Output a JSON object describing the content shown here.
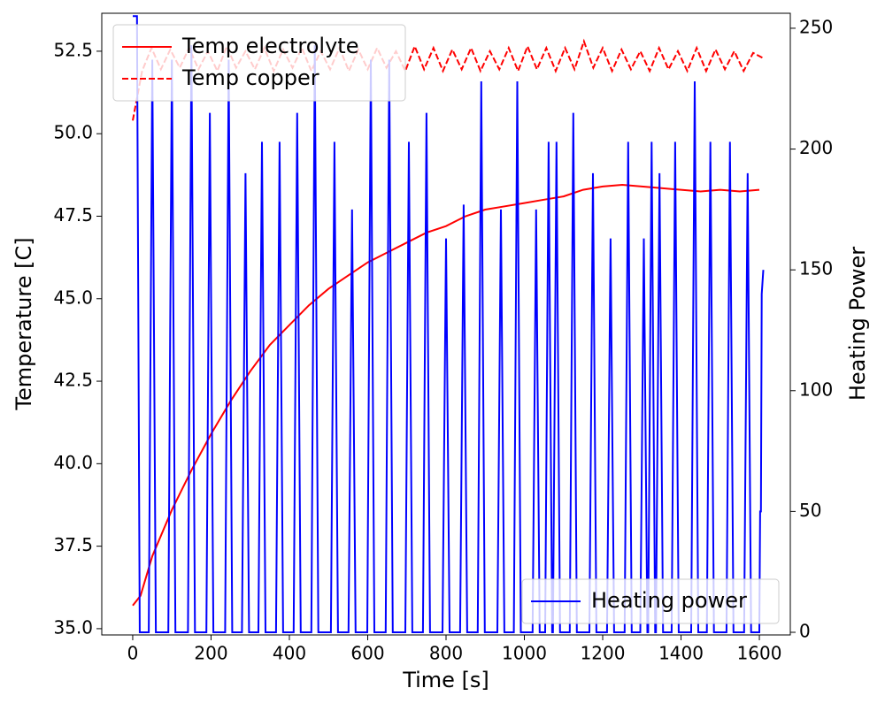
{
  "chart_data": {
    "type": "line",
    "xlabel": "Time [s]",
    "ylabel": "Temperature [C]",
    "y2label": "Heating Power",
    "xlim": [
      -79,
      1679
    ],
    "xticks": [
      0,
      200,
      400,
      600,
      800,
      1000,
      1200,
      1400,
      1600
    ],
    "ylim": [
      34.81,
      53.65
    ],
    "yticks": [
      {
        "value": 35,
        "label": "35.0"
      },
      37.5,
      {
        "value": 40,
        "label": "40.0"
      },
      42.5,
      {
        "value": 45,
        "label": "45.0"
      },
      47.5,
      {
        "value": 50,
        "label": "50.0"
      },
      52.5
    ],
    "y2lim": [
      -1.1,
      256.2
    ],
    "y2ticks": [
      0,
      50,
      100,
      150,
      200,
      250
    ],
    "legend": "upper left",
    "legend2": "lower right",
    "series": [
      {
        "name": "Temp electrolyte",
        "color": "#ff0000",
        "dash": false,
        "axis": "y",
        "x": [
          0,
          20,
          50,
          100,
          150,
          200,
          250,
          300,
          350,
          400,
          450,
          500,
          550,
          600,
          650,
          700,
          750,
          800,
          850,
          900,
          950,
          1000,
          1050,
          1100,
          1150,
          1200,
          1250,
          1300,
          1350,
          1400,
          1450,
          1500,
          1550,
          1600
        ],
        "values": [
          35.7,
          36.0,
          37.2,
          38.6,
          39.8,
          40.9,
          41.9,
          42.8,
          43.6,
          44.2,
          44.8,
          45.3,
          45.7,
          46.1,
          46.4,
          46.7,
          47.0,
          47.2,
          47.5,
          47.7,
          47.8,
          47.9,
          48.0,
          48.1,
          48.3,
          48.4,
          48.45,
          48.4,
          48.35,
          48.3,
          48.25,
          48.3,
          48.25,
          48.3
        ]
      },
      {
        "name": "Temp copper",
        "color": "#ff0000",
        "dash": true,
        "axis": "y",
        "x": [
          0,
          24,
          48,
          72,
          96,
          120,
          144,
          168,
          192,
          216,
          240,
          264,
          288,
          312,
          336,
          360,
          384,
          408,
          432,
          456,
          480,
          504,
          528,
          552,
          576,
          600,
          624,
          648,
          672,
          696,
          720,
          744,
          768,
          792,
          816,
          840,
          864,
          888,
          912,
          936,
          960,
          984,
          1008,
          1032,
          1056,
          1080,
          1104,
          1128,
          1152,
          1176,
          1200,
          1224,
          1248,
          1272,
          1296,
          1320,
          1344,
          1368,
          1392,
          1416,
          1440,
          1464,
          1488,
          1512,
          1536,
          1560,
          1584,
          1608
        ],
        "values": [
          50.4,
          51.9,
          52.6,
          51.95,
          52.55,
          52.0,
          52.6,
          51.95,
          52.5,
          51.9,
          52.65,
          52.0,
          52.5,
          51.95,
          52.6,
          51.9,
          52.55,
          52.0,
          52.6,
          51.9,
          52.5,
          51.95,
          52.6,
          51.9,
          52.55,
          51.95,
          52.6,
          52.0,
          52.5,
          51.9,
          52.65,
          51.95,
          52.6,
          51.9,
          52.55,
          51.95,
          52.6,
          51.9,
          52.5,
          51.95,
          52.6,
          51.9,
          52.65,
          51.95,
          52.6,
          51.9,
          52.6,
          51.95,
          52.8,
          52.0,
          52.6,
          51.9,
          52.55,
          51.95,
          52.5,
          51.9,
          52.6,
          51.95,
          52.5,
          51.9,
          52.6,
          51.9,
          52.55,
          51.95,
          52.5,
          51.9,
          52.45,
          52.3
        ]
      },
      {
        "name": "Heating power",
        "color": "#0000ff",
        "dash": false,
        "axis": "y2",
        "x": [
          0,
          11,
          18,
          41,
          50,
          59,
          91,
          100,
          109,
          141,
          150,
          159,
          188,
          197,
          206,
          236,
          245,
          254,
          279,
          288,
          297,
          321,
          330,
          339,
          366,
          375,
          384,
          411,
          420,
          429,
          456,
          465,
          474,
          506,
          515,
          524,
          551,
          560,
          569,
          599,
          608,
          617,
          646,
          655,
          664,
          696,
          705,
          714,
          741,
          750,
          759,
          791,
          800,
          809,
          836,
          845,
          854,
          881,
          890,
          899,
          931,
          940,
          949,
          973,
          982,
          991,
          1021,
          1030,
          1039,
          1053,
          1062,
          1071,
          1073,
          1082,
          1091,
          1116,
          1125,
          1134,
          1166,
          1175,
          1184,
          1211,
          1220,
          1229,
          1256,
          1265,
          1274,
          1296,
          1305,
          1314,
          1316,
          1325,
          1334,
          1336,
          1345,
          1354,
          1376,
          1385,
          1394,
          1426,
          1435,
          1444,
          1466,
          1475,
          1484,
          1516,
          1525,
          1534,
          1561,
          1570,
          1579,
          1600,
          1602,
          1604,
          1606,
          1610
        ],
        "values": [
          255,
          255,
          0,
          0,
          237,
          0,
          0,
          237,
          0,
          0,
          243,
          0,
          0,
          215,
          0,
          0,
          237,
          0,
          0,
          190,
          0,
          0,
          203,
          0,
          0,
          203,
          0,
          0,
          215,
          0,
          0,
          243,
          0,
          0,
          203,
          0,
          0,
          175,
          0,
          0,
          237,
          0,
          0,
          237,
          0,
          0,
          203,
          0,
          0,
          215,
          0,
          0,
          163,
          0,
          0,
          177,
          0,
          0,
          228,
          0,
          0,
          175,
          0,
          0,
          228,
          0,
          0,
          175,
          0,
          0,
          203,
          0,
          0,
          203,
          0,
          0,
          215,
          0,
          0,
          190,
          0,
          0,
          163,
          0,
          0,
          203,
          0,
          0,
          163,
          0,
          0,
          203,
          0,
          0,
          190,
          0,
          0,
          203,
          0,
          0,
          228,
          0,
          0,
          203,
          0,
          0,
          203,
          0,
          0,
          190,
          0,
          0,
          50,
          50,
          140,
          150
        ]
      }
    ]
  }
}
